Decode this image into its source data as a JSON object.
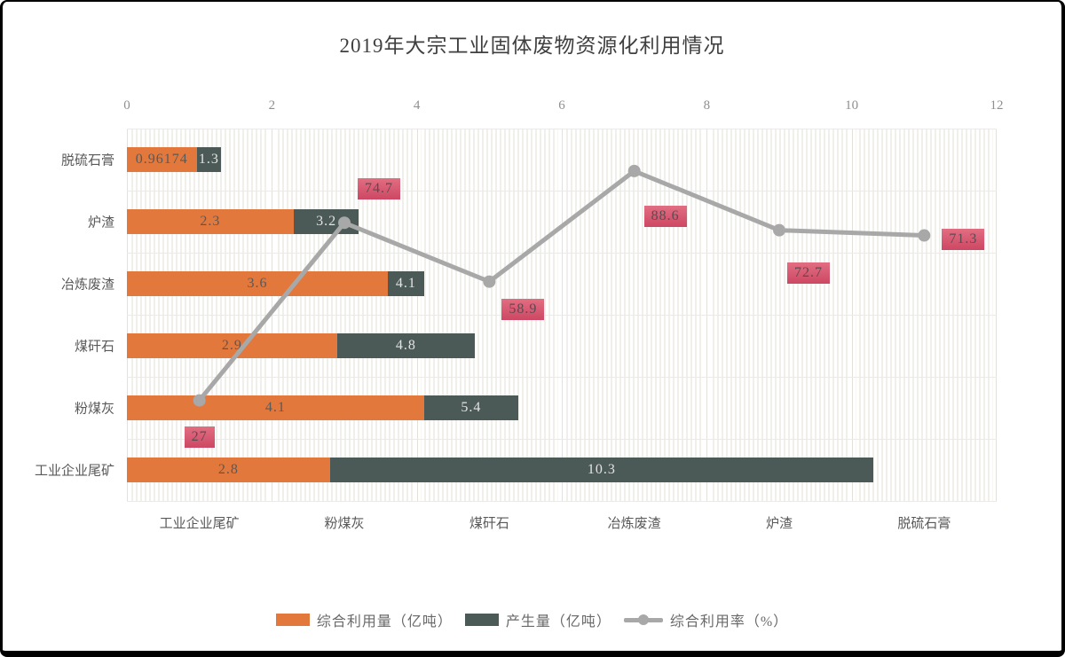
{
  "title": "2019年大宗工业固体废物资源化利用情况",
  "chart_data": {
    "type": "bar",
    "orientation": "horizontal bars with overlaid line (dual axis)",
    "categories": [
      "工业企业尾矿",
      "粉煤灰",
      "煤矸石",
      "冶炼废渣",
      "炉渣",
      "脱硫石膏"
    ],
    "row_order_top_to_bottom": [
      "脱硫石膏",
      "炉渣",
      "冶炼废渣",
      "煤矸石",
      "粉煤灰",
      "工业企业尾矿"
    ],
    "value_axis": {
      "position": "top",
      "min": 0,
      "max": 12,
      "ticks": [
        "0",
        "2",
        "4",
        "6",
        "8",
        "10",
        "12"
      ]
    },
    "secondary_value_axis": {
      "min": 0,
      "max": 100,
      "visible": false,
      "unit": "%"
    },
    "grid": true,
    "legend_position": "bottom",
    "series": [
      {
        "name": "综合利用量（亿吨）",
        "type": "bar",
        "color": "#e2783c",
        "label_text_color": "#595959",
        "values": [
          2.8,
          4.1,
          2.9,
          3.6,
          2.3,
          0.96174
        ],
        "data_labels": [
          "2.8",
          "4.1",
          "2.9",
          "3.6",
          "2.3",
          "0.96174"
        ]
      },
      {
        "name": "产生量（亿吨）",
        "type": "bar",
        "color": "#4c5a57",
        "label_text_color": "#e3e3e3",
        "values": [
          10.3,
          5.4,
          4.8,
          4.1,
          3.2,
          1.3
        ],
        "data_labels": [
          "10.3",
          "5.4",
          "4.8",
          "4.1",
          "3.2",
          "1.3"
        ]
      },
      {
        "name": "综合利用率（%）",
        "type": "line",
        "color": "#a8a8a8",
        "marker": "circle",
        "values": [
          27,
          74.7,
          58.9,
          88.6,
          72.7,
          71.3
        ],
        "data_labels": [
          "27",
          "74.7",
          "58.9",
          "88.6",
          "72.7",
          "71.3"
        ],
        "label_bg_top": "#e26e82",
        "label_bg_bottom": "#cd4763",
        "label_text_color": "#5c4a50"
      }
    ]
  }
}
